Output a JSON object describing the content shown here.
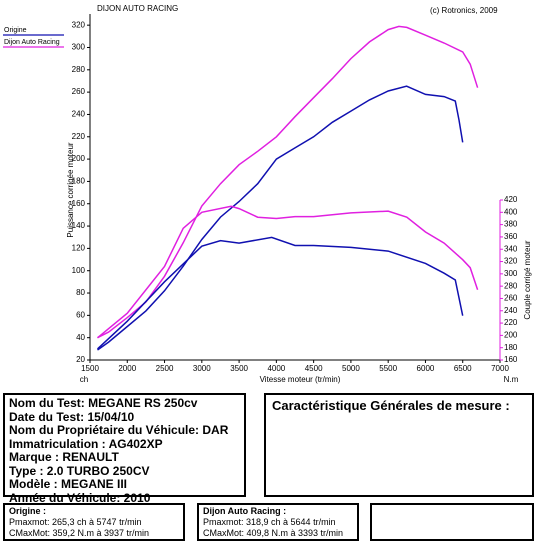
{
  "chart_data": {
    "type": "line",
    "title": "DIJON AUTO RACING",
    "subtitle": "(c) Rotronics, 2009",
    "y_label": "Puissance corrigée moteur",
    "y2_label": "Couple corrigé moteur",
    "x_label": "Vitesse moteur (tr/min)",
    "y_unit": "ch",
    "y2_unit": "N.m",
    "xlim": [
      1500,
      7000
    ],
    "xticks": [
      1500,
      2000,
      2500,
      3000,
      3500,
      4000,
      4500,
      5000,
      5500,
      6000,
      6500,
      7000
    ],
    "ylim": [
      20,
      330
    ],
    "yticks": [
      20,
      40,
      60,
      80,
      100,
      120,
      140,
      160,
      180,
      200,
      220,
      240,
      260,
      280,
      300,
      320
    ],
    "y2lim": [
      160,
      420
    ],
    "y2ticks": [
      160,
      180,
      200,
      220,
      240,
      260,
      280,
      300,
      320,
      340,
      360,
      380,
      400,
      420
    ],
    "grid": false,
    "series": [
      {
        "name": "Origine",
        "color": "#1010b0",
        "x": [
          1600,
          1750,
          2000,
          2250,
          2500,
          2750,
          3000,
          3250,
          3500,
          3750,
          4000,
          4250,
          4500,
          4750,
          5000,
          5250,
          5500,
          5747,
          6000,
          6250,
          6400,
          6450,
          6500
        ],
        "values": [
          29,
          36,
          50,
          64,
          82,
          104,
          128,
          148,
          162,
          178,
          200,
          210,
          220,
          233,
          243,
          253,
          261,
          265.3,
          258,
          256,
          252,
          235,
          215
        ]
      },
      {
        "name": "Dijon Auto Racing",
        "color": "#e020e0",
        "x": [
          1600,
          1750,
          2000,
          2250,
          2500,
          2750,
          3000,
          3250,
          3500,
          3750,
          4000,
          4250,
          4500,
          4750,
          5000,
          5250,
          5500,
          5644,
          5750,
          6000,
          6250,
          6500,
          6600,
          6700
        ],
        "values": [
          40,
          45,
          58,
          72,
          95,
          125,
          158,
          178,
          195,
          207,
          220,
          238,
          255,
          272,
          290,
          305,
          316,
          318.9,
          318,
          311,
          304,
          296,
          285,
          264
        ]
      },
      {
        "color": "#1010b0",
        "axis": "y2",
        "x": [
          1600,
          2000,
          2500,
          3000,
          3250,
          3500,
          3937,
          4250,
          4500,
          5000,
          5500,
          6000,
          6250,
          6400,
          6500
        ],
        "values": [
          178,
          223,
          287,
          345,
          354,
          350,
          359.2,
          346,
          346,
          343,
          337,
          317,
          301,
          290,
          232
        ]
      },
      {
        "color": "#e020e0",
        "axis": "y2",
        "x": [
          1600,
          2000,
          2500,
          2750,
          3000,
          3393,
          3500,
          3750,
          4000,
          4250,
          4500,
          5000,
          5500,
          5750,
          6000,
          6250,
          6500,
          6600,
          6700
        ],
        "values": [
          196,
          236,
          312,
          374,
          400,
          409.8,
          406,
          392,
          390,
          393,
          393,
          399,
          402,
          392,
          368,
          350,
          323,
          310,
          274
        ]
      }
    ]
  },
  "test_info": {
    "lines": [
      "Nom du Test: MEGANE RS 250cv",
      "Date du Test: 15/04/10",
      "Nom du Propriétaire du Véhicule: DAR",
      "Immatriculation  : AG402XP",
      "Marque  : RENAULT",
      "Type  : 2.0 TURBO 250CV",
      "Modèle  : MEGANE III",
      "Année du Véhicule: 2010"
    ]
  },
  "measure_box": {
    "title": "Caractéristique Générales de mesure :"
  },
  "summary": [
    {
      "title": "Origine :",
      "lines": [
        "Pmaxmot: 265,3 ch à 5747 tr/min",
        "CMaxMot: 359,2 N.m à 3937 tr/min"
      ]
    },
    {
      "title": "Dijon Auto Racing :",
      "lines": [
        "Pmaxmot: 318,9 ch à 5644 tr/min",
        "CMaxMot: 409,8 N.m à 3393 tr/min"
      ]
    }
  ]
}
